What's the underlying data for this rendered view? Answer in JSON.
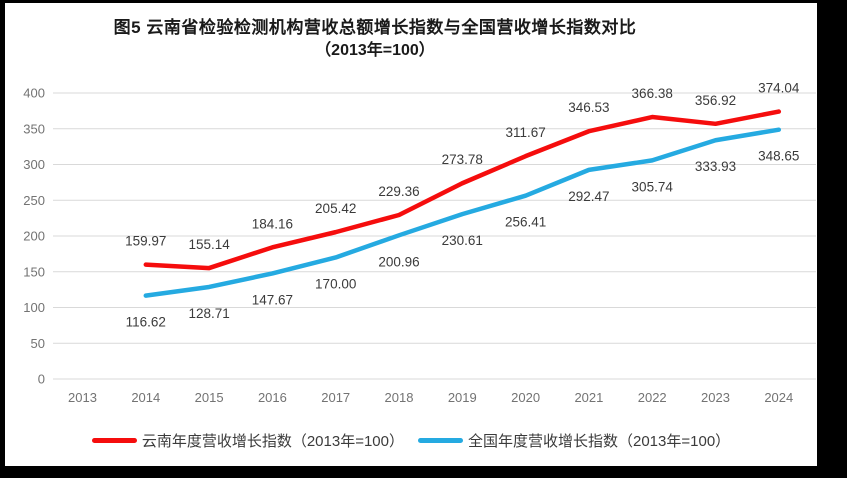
{
  "figure": {
    "bg_color": "#000000",
    "panel_color": "#FFFFFF"
  },
  "chart_data": {
    "type": "line",
    "title": "图5  云南省检验检测机构营收总额增长指数与全国营收增长指数对比",
    "subtitle": "（2013年=100）",
    "categories": [
      "2013",
      "2014",
      "2015",
      "2016",
      "2017",
      "2018",
      "2019",
      "2020",
      "2021",
      "2022",
      "2023",
      "2024"
    ],
    "series": [
      {
        "name": "云南年度营收增长指数（2013年=100）",
        "color": "#F50D0D",
        "values": [
          null,
          159.97,
          155.14,
          184.16,
          205.42,
          229.36,
          273.78,
          311.67,
          346.53,
          366.38,
          356.92,
          374.04
        ],
        "labels": [
          null,
          "159.97",
          "155.14",
          "184.16",
          "205.42",
          "229.36",
          "273.78",
          "311.67",
          "346.53",
          "366.38",
          "356.92",
          "374.04"
        ],
        "label_position": "above"
      },
      {
        "name": "全国年度营收增长指数（2013年=100）",
        "color": "#25AAE1",
        "values": [
          null,
          116.62,
          128.71,
          147.67,
          170.0,
          200.96,
          230.61,
          256.41,
          292.47,
          305.74,
          333.93,
          348.65
        ],
        "labels": [
          null,
          "116.62",
          "128.71",
          "147.67",
          "170.00",
          "200.96",
          "230.61",
          "256.41",
          "292.47",
          "305.74",
          "333.93",
          "348.65"
        ],
        "label_position": "below"
      }
    ],
    "ylim": [
      0,
      400
    ],
    "ytick_step": 50,
    "yticks": [
      "0",
      "50",
      "100",
      "150",
      "200",
      "250",
      "300",
      "350",
      "400"
    ],
    "grid": true,
    "grid_color": "#D9D9D9",
    "tick_label_color": "#737373",
    "data_label_color": "#3B3B3B",
    "legend_position": "bottom"
  }
}
